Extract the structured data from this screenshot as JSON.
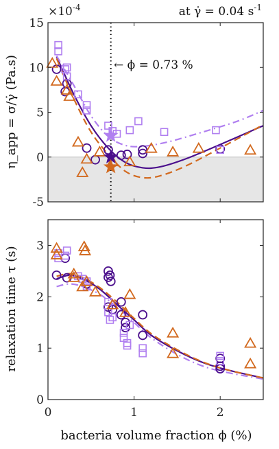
{
  "colors": {
    "purple_dark": "#4b0f8c",
    "purple_light": "#b07ff0",
    "orange": "#d2691e",
    "shade": "#e6e6e6"
  },
  "chart_data": [
    {
      "type": "scatter",
      "panel": "top",
      "multiplier_label": "×10",
      "multiplier_exponent": "-4",
      "annotation_top_right": "at γ̇ = 0.04 s",
      "annotation_top_right_exp": "-1",
      "annotation_phi": "← ϕ = 0.73 %",
      "vertical_marker_x": 0.73,
      "ylabel": "η_app = σ/γ̇  (Pa.s)",
      "xlim": [
        0,
        2.5
      ],
      "ylim": [
        -5,
        15
      ],
      "shaded_below_zero": true,
      "yticks": [
        "-5",
        "0",
        "5",
        "10",
        "15"
      ],
      "ytick_values": [
        -5,
        0,
        5,
        10,
        15
      ],
      "series": [
        {
          "marker": "circle",
          "color": "purple_dark",
          "points": [
            [
              0.1,
              9.8
            ],
            [
              0.2,
              7.3
            ],
            [
              0.22,
              8.2
            ],
            [
              0.45,
              1.0
            ],
            [
              0.55,
              -0.3
            ],
            [
              0.7,
              0.8
            ],
            [
              0.85,
              0.2
            ],
            [
              0.92,
              0.3
            ],
            [
              1.1,
              0.4
            ],
            [
              1.1,
              0.8
            ],
            [
              2.0,
              0.9
            ]
          ]
        },
        {
          "marker": "square",
          "color": "purple_light",
          "points": [
            [
              0.12,
              12.5
            ],
            [
              0.12,
              11.8
            ],
            [
              0.2,
              9.8
            ],
            [
              0.22,
              9.0
            ],
            [
              0.22,
              10.0
            ],
            [
              0.35,
              7.0
            ],
            [
              0.45,
              5.8
            ],
            [
              0.45,
              5.2
            ],
            [
              0.7,
              3.5
            ],
            [
              0.75,
              2.9
            ],
            [
              0.8,
              2.6
            ],
            [
              0.95,
              3.0
            ],
            [
              1.05,
              4.0
            ],
            [
              1.35,
              2.8
            ],
            [
              1.95,
              3.0
            ],
            [
              2.0,
              0.8
            ]
          ]
        },
        {
          "marker": "triangle",
          "color": "orange",
          "points": [
            [
              0.05,
              10.5
            ],
            [
              0.1,
              8.5
            ],
            [
              0.22,
              7.5
            ],
            [
              0.25,
              6.8
            ],
            [
              0.35,
              1.7
            ],
            [
              0.45,
              -0.2
            ],
            [
              0.4,
              -1.7
            ],
            [
              0.6,
              0.6
            ],
            [
              0.75,
              -0.5
            ],
            [
              0.95,
              -0.5
            ],
            [
              1.45,
              0.6
            ],
            [
              1.2,
              1.0
            ],
            [
              1.75,
              1.0
            ],
            [
              2.35,
              0.8
            ]
          ]
        }
      ],
      "stars": [
        {
          "x": 0.73,
          "y": 2.4,
          "color": "purple_light"
        },
        {
          "x": 0.73,
          "y": 0.0,
          "color": "purple_dark"
        },
        {
          "x": 0.73,
          "y": -1.1,
          "color": "orange"
        }
      ],
      "fits": [
        {
          "color": "purple_dark",
          "style": "solid",
          "points": [
            [
              0.1,
              11.2
            ],
            [
              0.3,
              7.0
            ],
            [
              0.5,
              3.5
            ],
            [
              0.7,
              1.0
            ],
            [
              0.9,
              -0.6
            ],
            [
              1.1,
              -1.2
            ],
            [
              1.3,
              -1.1
            ],
            [
              1.6,
              -0.2
            ],
            [
              2.0,
              1.4
            ],
            [
              2.5,
              3.5
            ]
          ]
        },
        {
          "color": "purple_light",
          "style": "dashdot",
          "points": [
            [
              0.1,
              11.3
            ],
            [
              0.3,
              8.0
            ],
            [
              0.5,
              4.6
            ],
            [
              0.7,
              2.3
            ],
            [
              0.9,
              1.3
            ],
            [
              1.1,
              1.2
            ],
            [
              1.4,
              1.7
            ],
            [
              1.8,
              2.8
            ],
            [
              2.2,
              4.0
            ],
            [
              2.5,
              5.2
            ]
          ]
        },
        {
          "color": "orange",
          "style": "dashed",
          "points": [
            [
              0.1,
              11.0
            ],
            [
              0.3,
              6.5
            ],
            [
              0.5,
              2.8
            ],
            [
              0.7,
              0.3
            ],
            [
              0.9,
              -1.6
            ],
            [
              1.1,
              -2.3
            ],
            [
              1.3,
              -2.1
            ],
            [
              1.6,
              -1.0
            ],
            [
              2.0,
              1.0
            ],
            [
              2.5,
              3.6
            ]
          ]
        }
      ]
    },
    {
      "type": "scatter",
      "panel": "bottom",
      "ylabel": "relaxation time τ  (s)",
      "xlabel": "bacteria volume fraction ϕ (%)",
      "xlim": [
        0,
        2.5
      ],
      "ylim": [
        0,
        3.5
      ],
      "xticks": [
        "0",
        "1",
        "2"
      ],
      "xtick_values": [
        0,
        1,
        2
      ],
      "yticks": [
        "0",
        "1",
        "2",
        "3"
      ],
      "ytick_values": [
        0,
        1,
        2,
        3
      ],
      "series": [
        {
          "marker": "circle",
          "color": "purple_dark",
          "points": [
            [
              0.1,
              2.42
            ],
            [
              0.2,
              2.75
            ],
            [
              0.22,
              2.37
            ],
            [
              0.45,
              2.25
            ],
            [
              0.7,
              2.5
            ],
            [
              0.7,
              2.38
            ],
            [
              0.72,
              2.42
            ],
            [
              0.73,
              2.3
            ],
            [
              0.7,
              1.8
            ],
            [
              0.75,
              1.75
            ],
            [
              0.85,
              1.9
            ],
            [
              0.85,
              1.65
            ],
            [
              0.9,
              1.5
            ],
            [
              0.9,
              1.4
            ],
            [
              1.1,
              1.65
            ],
            [
              1.1,
              1.25
            ],
            [
              2.0,
              0.8
            ],
            [
              2.0,
              0.65
            ],
            [
              2.0,
              0.6
            ]
          ]
        },
        {
          "marker": "square",
          "color": "purple_light",
          "points": [
            [
              0.12,
              2.85
            ],
            [
              0.12,
              2.75
            ],
            [
              0.2,
              2.8
            ],
            [
              0.22,
              2.9
            ],
            [
              0.35,
              2.4
            ],
            [
              0.4,
              2.35
            ],
            [
              0.45,
              2.2
            ],
            [
              0.45,
              2.3
            ],
            [
              0.7,
              1.9
            ],
            [
              0.7,
              1.7
            ],
            [
              0.72,
              1.55
            ],
            [
              0.75,
              1.6
            ],
            [
              0.88,
              1.3
            ],
            [
              0.88,
              1.2
            ],
            [
              0.92,
              1.1
            ],
            [
              0.92,
              1.05
            ],
            [
              0.95,
              1.45
            ],
            [
              1.1,
              1.0
            ],
            [
              1.1,
              0.9
            ],
            [
              2.0,
              0.85
            ],
            [
              2.0,
              0.75
            ]
          ]
        },
        {
          "marker": "triangle",
          "color": "orange",
          "points": [
            [
              0.1,
              2.95
            ],
            [
              0.1,
              2.82
            ],
            [
              0.3,
              2.45
            ],
            [
              0.3,
              2.38
            ],
            [
              0.42,
              2.98
            ],
            [
              0.43,
              2.9
            ],
            [
              0.4,
              2.2
            ],
            [
              0.45,
              2.3
            ],
            [
              0.55,
              2.1
            ],
            [
              0.75,
              1.85
            ],
            [
              0.9,
              1.7
            ],
            [
              0.95,
              2.05
            ],
            [
              1.45,
              1.3
            ],
            [
              1.45,
              0.9
            ],
            [
              2.35,
              1.1
            ],
            [
              2.35,
              0.7
            ]
          ]
        }
      ],
      "fits": [
        {
          "color": "purple_dark",
          "style": "solid",
          "points": [
            [
              0.1,
              2.35
            ],
            [
              0.25,
              2.42
            ],
            [
              0.4,
              2.35
            ],
            [
              0.6,
              2.15
            ],
            [
              0.8,
              1.85
            ],
            [
              1.0,
              1.55
            ],
            [
              1.2,
              1.25
            ],
            [
              1.5,
              0.95
            ],
            [
              1.8,
              0.72
            ],
            [
              2.1,
              0.57
            ],
            [
              2.5,
              0.42
            ]
          ]
        },
        {
          "color": "purple_light",
          "style": "dashdot",
          "points": [
            [
              0.1,
              2.2
            ],
            [
              0.25,
              2.25
            ],
            [
              0.4,
              2.2
            ],
            [
              0.6,
              2.05
            ],
            [
              0.8,
              1.8
            ],
            [
              1.0,
              1.5
            ],
            [
              1.2,
              1.2
            ],
            [
              1.5,
              0.88
            ],
            [
              1.8,
              0.65
            ],
            [
              2.1,
              0.52
            ],
            [
              2.5,
              0.4
            ]
          ]
        },
        {
          "color": "orange",
          "style": "dashed",
          "points": [
            [
              0.1,
              2.4
            ],
            [
              0.25,
              2.45
            ],
            [
              0.4,
              2.38
            ],
            [
              0.6,
              2.18
            ],
            [
              0.8,
              1.9
            ],
            [
              1.0,
              1.58
            ],
            [
              1.2,
              1.28
            ],
            [
              1.5,
              0.97
            ],
            [
              1.8,
              0.73
            ],
            [
              2.1,
              0.57
            ],
            [
              2.5,
              0.42
            ]
          ]
        }
      ]
    }
  ]
}
